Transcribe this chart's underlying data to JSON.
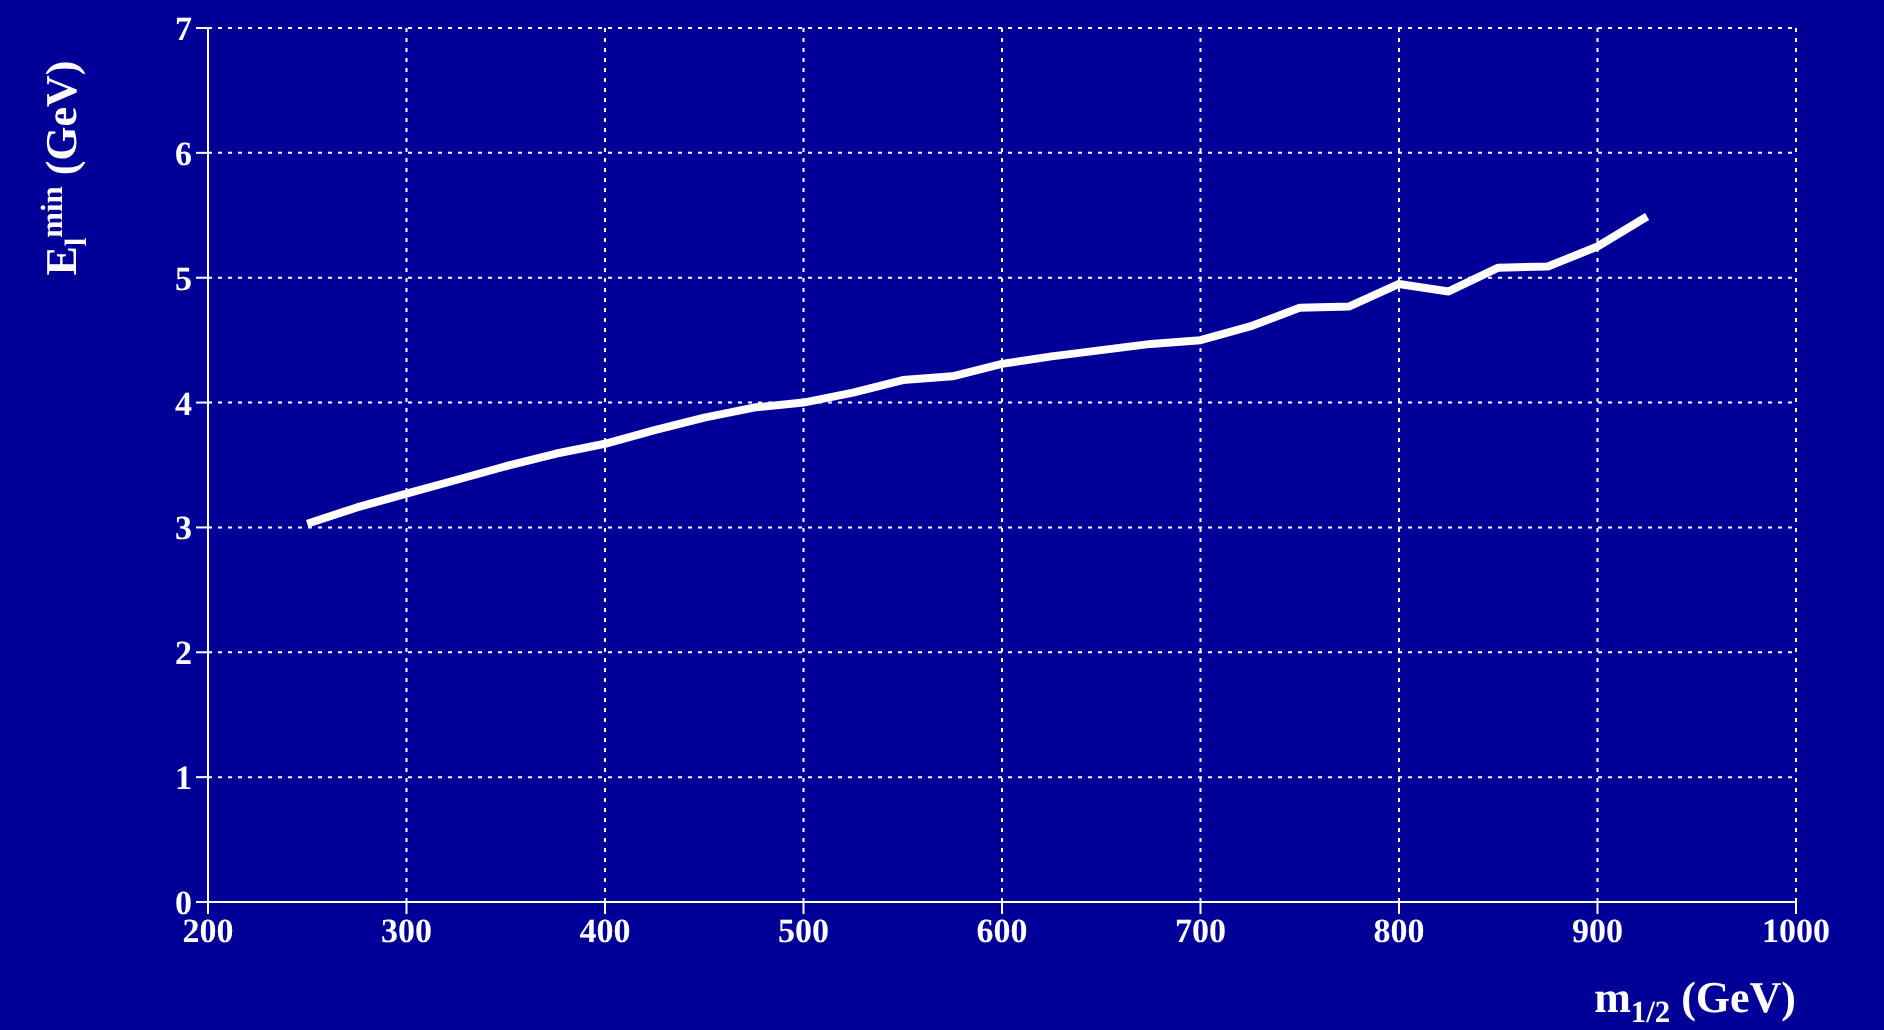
{
  "chart_data": {
    "type": "line",
    "xlabel": "m$_{1/2}$ (GeV)",
    "ylabel": "E$_{l}$$^{min}$ (GeV)",
    "x": [
      250,
      275,
      300,
      325,
      350,
      375,
      400,
      425,
      450,
      475,
      500,
      525,
      550,
      575,
      600,
      625,
      650,
      675,
      700,
      725,
      750,
      775,
      800,
      825,
      850,
      875,
      900,
      925
    ],
    "series": [
      {
        "color": "#ffffff",
        "values": [
          3.03,
          3.16,
          3.27,
          3.38,
          3.49,
          3.59,
          3.67,
          3.78,
          3.88,
          3.96,
          4.0,
          4.08,
          4.18,
          4.21,
          4.31,
          4.37,
          4.42,
          4.47,
          4.5,
          4.61,
          4.76,
          4.77,
          4.95,
          4.89,
          5.08,
          5.09,
          5.25,
          5.49
        ]
      }
    ],
    "xlim": [
      200,
      1000
    ],
    "xticks": [
      200,
      300,
      400,
      500,
      600,
      700,
      800,
      900,
      1000
    ],
    "ylim": [
      0,
      7
    ],
    "yticks": [
      0,
      1,
      2,
      3,
      4,
      5,
      6,
      7
    ],
    "grid": true,
    "marker": "none",
    "line_style": "solid",
    "legend": false
  }
}
